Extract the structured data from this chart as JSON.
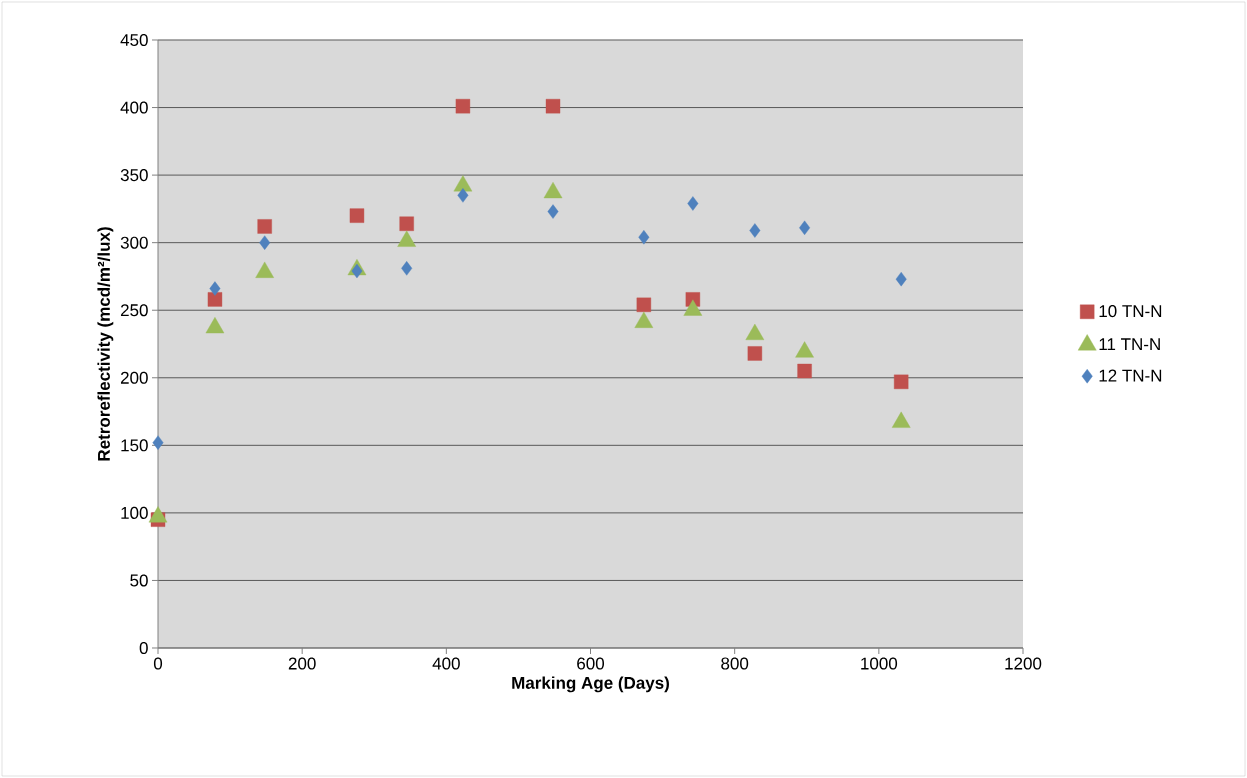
{
  "chart_data": {
    "type": "scatter",
    "xlabel": "Marking Age (Days)",
    "ylabel": "Retroreflectivity (mcd/m²/lux)",
    "x": [
      0,
      79,
      148,
      276,
      345,
      423,
      548,
      674,
      742,
      828,
      897,
      1031
    ],
    "xlim": [
      0,
      1200
    ],
    "xticks": [
      0,
      200,
      400,
      600,
      800,
      1000,
      1200
    ],
    "ylim": [
      0,
      450
    ],
    "yticks": [
      0,
      50,
      100,
      150,
      200,
      250,
      300,
      350,
      400,
      450
    ],
    "grid": "y",
    "legend": "right",
    "series": [
      {
        "name": "10 TN-N",
        "color": "#c0504d",
        "marker": "square",
        "values": [
          95,
          258,
          312,
          320,
          314,
          401,
          401,
          254,
          258,
          218,
          205,
          197
        ]
      },
      {
        "name": "11 TN-N",
        "color": "#9bbb59",
        "marker": "triangle",
        "values": [
          97,
          237,
          278,
          280,
          301,
          342,
          337,
          241,
          250,
          232,
          219,
          167
        ]
      },
      {
        "name": "12 TN-N",
        "color": "#4f81bd",
        "marker": "diamond",
        "values": [
          152,
          266,
          300,
          279,
          281,
          335,
          323,
          304,
          329,
          309,
          311,
          273
        ]
      }
    ]
  }
}
